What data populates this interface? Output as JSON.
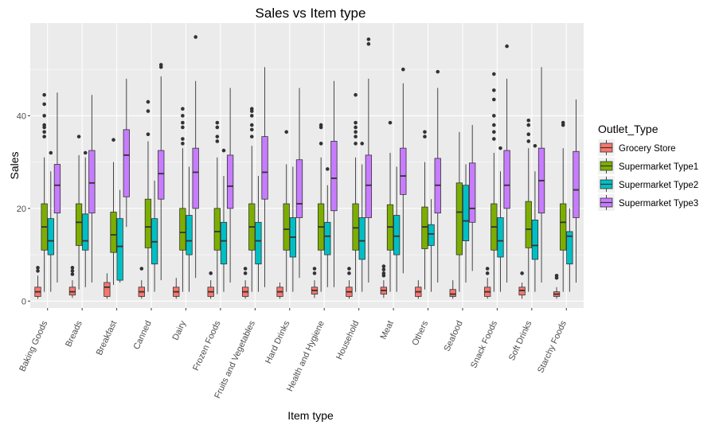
{
  "chart_data": {
    "type": "boxplot",
    "title": "Sales vs Item type",
    "xlabel": "Item type",
    "ylabel": "Sales",
    "ylim": [
      -1.5,
      60
    ],
    "yticks": [
      0,
      20,
      40
    ],
    "grid": true,
    "legend": {
      "title": "Outlet_Type",
      "position": "right"
    },
    "categories": [
      "Baking Goods",
      "Breads",
      "Breakfast",
      "Canned",
      "Dairy",
      "Frozen Foods",
      "Fruits and Vegetables",
      "Hard Drinks",
      "Health and Hygiene",
      "Household",
      "Meat",
      "Others",
      "Seafood",
      "Snack Foods",
      "Soft Drinks",
      "Starchy Foods"
    ],
    "series": [
      {
        "name": "Grocery Store",
        "color": "#F8766D",
        "boxes": [
          {
            "lw": 0.5,
            "q1": 1.0,
            "med": 2.0,
            "q3": 3.0,
            "uw": 5.5,
            "out": [
              6.5,
              7.2
            ]
          },
          {
            "lw": 0.7,
            "q1": 1.3,
            "med": 2.0,
            "q3": 3.0,
            "uw": 4.5,
            "out": [
              5.8,
              6.5,
              7.2
            ]
          },
          {
            "lw": 0.5,
            "q1": 1.0,
            "med": 3.0,
            "q3": 4.0,
            "uw": 6.0,
            "out": []
          },
          {
            "lw": 0.5,
            "q1": 1.0,
            "med": 2.0,
            "q3": 3.0,
            "uw": 4.5,
            "out": [
              7.0
            ]
          },
          {
            "lw": 0.5,
            "q1": 1.0,
            "med": 2.0,
            "q3": 3.0,
            "uw": 5.0,
            "out": []
          },
          {
            "lw": 0.5,
            "q1": 1.0,
            "med": 2.0,
            "q3": 3.0,
            "uw": 4.5,
            "out": [
              6.0
            ]
          },
          {
            "lw": 0.5,
            "q1": 1.0,
            "med": 2.0,
            "q3": 3.0,
            "uw": 4.5,
            "out": [
              6.0,
              7.0
            ]
          },
          {
            "lw": 0.5,
            "q1": 1.0,
            "med": 2.0,
            "q3": 3.0,
            "uw": 4.0,
            "out": []
          },
          {
            "lw": 0.7,
            "q1": 1.5,
            "med": 2.3,
            "q3": 3.0,
            "uw": 4.5,
            "out": [
              6.0,
              7.0
            ]
          },
          {
            "lw": 0.5,
            "q1": 1.0,
            "med": 2.0,
            "q3": 3.0,
            "uw": 4.5,
            "out": [
              6.0,
              7.0
            ]
          },
          {
            "lw": 0.7,
            "q1": 1.5,
            "med": 2.3,
            "q3": 3.0,
            "uw": 4.5,
            "out": [
              5.5,
              6.0,
              6.8,
              7.5
            ]
          },
          {
            "lw": 0.5,
            "q1": 1.0,
            "med": 2.0,
            "q3": 3.0,
            "uw": 4.5,
            "out": []
          },
          {
            "lw": 0.5,
            "q1": 1.0,
            "med": 1.5,
            "q3": 2.5,
            "uw": 4.5,
            "out": []
          },
          {
            "lw": 0.5,
            "q1": 1.0,
            "med": 2.0,
            "q3": 3.0,
            "uw": 5.0,
            "out": [
              6.0,
              7.0
            ]
          },
          {
            "lw": 0.5,
            "q1": 1.3,
            "med": 2.3,
            "q3": 3.0,
            "uw": 4.0,
            "out": [
              6.0
            ]
          },
          {
            "lw": 0.5,
            "q1": 1.0,
            "med": 1.5,
            "q3": 2.0,
            "uw": 3.0,
            "out": [
              5.0,
              5.5
            ]
          }
        ]
      },
      {
        "name": "Supermarket Type1",
        "color": "#7CAE00",
        "boxes": [
          {
            "lw": 2.0,
            "q1": 11.0,
            "med": 16.0,
            "q3": 21.0,
            "uw": 31.0,
            "out": [
              35.5,
              36.5,
              37.5,
              38.0,
              40.0,
              42.5,
              44.5
            ]
          },
          {
            "lw": 2.5,
            "q1": 12.0,
            "med": 17.0,
            "q3": 21.0,
            "uw": 31.5,
            "out": [
              35.5
            ]
          },
          {
            "lw": 3.5,
            "q1": 10.5,
            "med": 14.3,
            "q3": 19.2,
            "uw": 30.0,
            "out": [
              34.8
            ]
          },
          {
            "lw": 2.0,
            "q1": 11.5,
            "med": 16.0,
            "q3": 22.0,
            "uw": 34.5,
            "out": [
              36.0,
              41.0,
              43.0
            ]
          },
          {
            "lw": 2.0,
            "q1": 11.0,
            "med": 14.8,
            "q3": 20.0,
            "uw": 33.0,
            "out": [
              34.0,
              35.0,
              37.5,
              38.5,
              40.0,
              41.5
            ]
          },
          {
            "lw": 1.5,
            "q1": 11.0,
            "med": 15.0,
            "q3": 20.0,
            "uw": 31.0,
            "out": [
              34.5,
              35.5,
              37.5,
              38.5
            ]
          },
          {
            "lw": 2.0,
            "q1": 11.0,
            "med": 16.0,
            "q3": 21.0,
            "uw": 33.5,
            "out": [
              35.5,
              37.0,
              38.0,
              40.0,
              41.0,
              41.5
            ]
          },
          {
            "lw": 2.0,
            "q1": 11.0,
            "med": 15.5,
            "q3": 21.0,
            "uw": 29.5,
            "out": [
              36.5
            ]
          },
          {
            "lw": 2.0,
            "q1": 11.0,
            "med": 16.0,
            "q3": 21.0,
            "uw": 31.0,
            "out": [
              34.0,
              37.5,
              38.0
            ]
          },
          {
            "lw": 2.0,
            "q1": 11.0,
            "med": 15.8,
            "q3": 21.0,
            "uw": 31.0,
            "out": [
              34.0,
              35.5,
              36.5,
              37.5,
              38.5,
              44.5
            ]
          },
          {
            "lw": 2.0,
            "q1": 11.0,
            "med": 16.0,
            "q3": 20.8,
            "uw": 32.0,
            "out": [
              38.5
            ]
          },
          {
            "lw": 2.5,
            "q1": 11.3,
            "med": 16.0,
            "q3": 20.3,
            "uw": 30.0,
            "out": [
              35.5,
              36.5
            ]
          },
          {
            "lw": 2.0,
            "q1": 10.0,
            "med": 19.2,
            "q3": 25.5,
            "uw": 36.5,
            "out": []
          },
          {
            "lw": 2.0,
            "q1": 11.0,
            "med": 16.0,
            "q3": 21.0,
            "uw": 32.0,
            "out": [
              35.0,
              36.5,
              38.0,
              40.0,
              43.5,
              45.5,
              49.0
            ]
          },
          {
            "lw": 2.0,
            "q1": 11.5,
            "med": 15.5,
            "q3": 21.5,
            "uw": 33.0,
            "out": [
              34.5,
              36.0,
              38.0,
              39.0
            ]
          },
          {
            "lw": 2.0,
            "q1": 11.0,
            "med": 17.0,
            "q3": 21.0,
            "uw": 33.0,
            "out": [
              38.0,
              38.5
            ]
          }
        ]
      },
      {
        "name": "Supermarket Type2",
        "color": "#00BFC4",
        "boxes": [
          {
            "lw": 2.0,
            "q1": 10.0,
            "med": 13.0,
            "q3": 17.8,
            "uw": 28.0,
            "out": [
              32.0
            ]
          },
          {
            "lw": 3.0,
            "q1": 11.0,
            "med": 13.0,
            "q3": 18.8,
            "uw": 31.0,
            "out": [
              32.0
            ]
          },
          {
            "lw": 4.0,
            "q1": 4.5,
            "med": 11.8,
            "q3": 17.8,
            "uw": 24.0,
            "out": []
          },
          {
            "lw": 2.0,
            "q1": 8.0,
            "med": 12.8,
            "q3": 17.8,
            "uw": 26.0,
            "out": []
          },
          {
            "lw": 2.0,
            "q1": 10.0,
            "med": 13.0,
            "q3": 18.5,
            "uw": 29.0,
            "out": []
          },
          {
            "lw": 2.0,
            "q1": 8.0,
            "med": 13.0,
            "q3": 17.0,
            "uw": 27.0,
            "out": [
              32.5
            ]
          },
          {
            "lw": 2.0,
            "q1": 8.0,
            "med": 13.0,
            "q3": 17.0,
            "uw": 27.0,
            "out": []
          },
          {
            "lw": 2.0,
            "q1": 9.5,
            "med": 13.8,
            "q3": 18.0,
            "uw": 29.0,
            "out": []
          },
          {
            "lw": 3.0,
            "q1": 10.0,
            "med": 14.0,
            "q3": 17.0,
            "uw": 25.0,
            "out": [
              28.5
            ]
          },
          {
            "lw": 2.0,
            "q1": 9.0,
            "med": 13.0,
            "q3": 18.0,
            "uw": 29.5,
            "out": [
              34.0
            ]
          },
          {
            "lw": 2.0,
            "q1": 10.0,
            "med": 14.0,
            "q3": 18.5,
            "uw": 29.0,
            "out": []
          },
          {
            "lw": 2.0,
            "q1": 12.0,
            "med": 14.5,
            "q3": 16.5,
            "uw": 22.0,
            "out": []
          },
          {
            "lw": 4.0,
            "q1": 13.0,
            "med": 17.3,
            "q3": 25.0,
            "uw": 29.5,
            "out": []
          },
          {
            "lw": 2.0,
            "q1": 9.5,
            "med": 13.0,
            "q3": 18.0,
            "uw": 28.0,
            "out": [
              33.0
            ]
          },
          {
            "lw": 2.0,
            "q1": 9.0,
            "med": 12.0,
            "q3": 17.5,
            "uw": 28.0,
            "out": [
              33.5
            ]
          },
          {
            "lw": 2.0,
            "q1": 8.0,
            "med": 14.0,
            "q3": 15.0,
            "uw": 20.0,
            "out": []
          }
        ]
      },
      {
        "name": "Supermarket Type3",
        "color": "#C77CFF",
        "boxes": [
          {
            "lw": 4.0,
            "q1": 19.0,
            "med": 25.0,
            "q3": 29.5,
            "uw": 45.0,
            "out": []
          },
          {
            "lw": 4.0,
            "q1": 19.0,
            "med": 25.5,
            "q3": 32.5,
            "uw": 44.5,
            "out": []
          },
          {
            "lw": 16.0,
            "q1": 22.5,
            "med": 31.5,
            "q3": 37.0,
            "uw": 48.0,
            "out": []
          },
          {
            "lw": 4.5,
            "q1": 22.0,
            "med": 27.5,
            "q3": 32.5,
            "uw": 48.5,
            "out": [
              50.5,
              51.0
            ]
          },
          {
            "lw": 5.0,
            "q1": 20.0,
            "med": 27.8,
            "q3": 33.0,
            "uw": 47.5,
            "out": [
              57.0
            ]
          },
          {
            "lw": 4.0,
            "q1": 20.0,
            "med": 24.8,
            "q3": 31.5,
            "uw": 46.0,
            "out": []
          },
          {
            "lw": 3.0,
            "q1": 22.0,
            "med": 27.8,
            "q3": 35.5,
            "uw": 50.5,
            "out": []
          },
          {
            "lw": 5.0,
            "q1": 18.0,
            "med": 21.0,
            "q3": 30.5,
            "uw": 46.0,
            "out": []
          },
          {
            "lw": 3.0,
            "q1": 19.5,
            "med": 26.5,
            "q3": 34.5,
            "uw": 47.5,
            "out": []
          },
          {
            "lw": 4.0,
            "q1": 18.0,
            "med": 25.0,
            "q3": 31.5,
            "uw": 48.0,
            "out": [
              55.5,
              56.5
            ]
          },
          {
            "lw": 6.0,
            "q1": 23.0,
            "med": 27.0,
            "q3": 33.0,
            "uw": 47.0,
            "out": [
              50.0
            ]
          },
          {
            "lw": 4.0,
            "q1": 19.0,
            "med": 25.0,
            "q3": 30.8,
            "uw": 46.0,
            "out": [
              49.5
            ]
          },
          {
            "lw": 6.5,
            "q1": 17.0,
            "med": 20.0,
            "q3": 29.8,
            "uw": 38.0,
            "out": []
          },
          {
            "lw": 4.0,
            "q1": 20.0,
            "med": 25.0,
            "q3": 32.5,
            "uw": 48.0,
            "out": [
              55.0
            ]
          },
          {
            "lw": 4.0,
            "q1": 19.0,
            "med": 26.0,
            "q3": 33.0,
            "uw": 50.5,
            "out": []
          },
          {
            "lw": 4.0,
            "q1": 18.0,
            "med": 24.0,
            "q3": 32.3,
            "uw": 43.5,
            "out": []
          }
        ]
      }
    ]
  }
}
